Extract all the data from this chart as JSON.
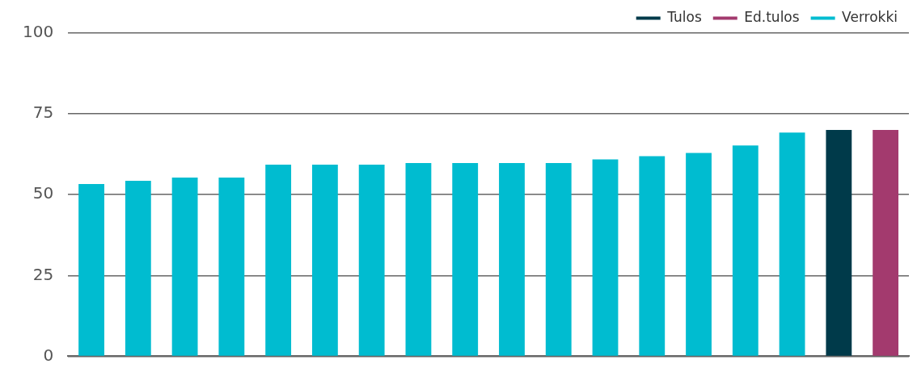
{
  "chart_data": {
    "type": "bar",
    "categories": [
      null,
      null,
      null,
      null,
      null,
      null,
      null,
      null,
      null,
      null,
      null,
      null,
      null,
      null,
      null,
      null,
      null,
      null
    ],
    "series": [
      {
        "name": "Tulos",
        "color": "#003a4a",
        "values": [
          null,
          null,
          null,
          null,
          null,
          null,
          null,
          null,
          null,
          null,
          null,
          null,
          null,
          null,
          null,
          null,
          70,
          null
        ]
      },
      {
        "name": "Ed.tulos",
        "color": "#a33a6e",
        "values": [
          null,
          null,
          null,
          null,
          null,
          null,
          null,
          null,
          null,
          null,
          null,
          null,
          null,
          null,
          null,
          null,
          null,
          70
        ]
      },
      {
        "name": "Verrokki",
        "color": "#00bcd0",
        "values": [
          53.3,
          54.3,
          55.3,
          55.3,
          59.3,
          59.3,
          59.3,
          59.8,
          59.8,
          59.8,
          59.8,
          60.9,
          61.9,
          62.9,
          65.2,
          69.2,
          null,
          null
        ]
      }
    ],
    "ylim": [
      0,
      100
    ],
    "yticks": [
      0,
      25,
      50,
      75,
      100
    ],
    "grid": "y",
    "legend": "top right"
  }
}
